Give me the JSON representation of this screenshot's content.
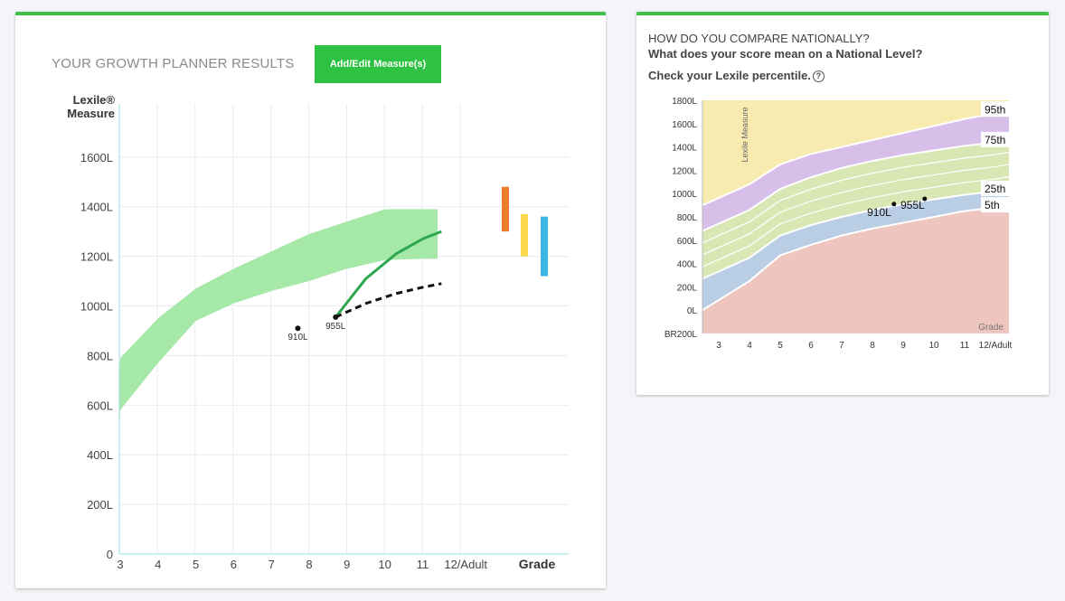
{
  "left_panel": {
    "title": "YOUR GROWTH PLANNER RESULTS",
    "add_button_label": "Add/Edit Measure(s)"
  },
  "right_panel": {
    "heading": "HOW DO YOU COMPARE NATIONALLY?",
    "subheading": "What does your score mean on a National Level?",
    "percentile_prompt": "Check your Lexile percentile.",
    "help_icon": "question-circle-icon"
  },
  "colors": {
    "accent": "#3ec14b",
    "band": "#a6e8a8",
    "growth_line": "#2ea84e",
    "bar_orange": "#ef7c2d",
    "bar_yellow": "#fbd94b",
    "bar_blue": "#3ab8e1"
  },
  "chart_data": [
    {
      "type": "line",
      "ylabel": "Lexile® Measure",
      "xlabel": "Grade",
      "categories": [
        "3",
        "4",
        "5",
        "6",
        "7",
        "8",
        "9",
        "10",
        "11",
        "12/Adult"
      ],
      "ylim": [
        0,
        1800
      ],
      "yticks": [
        {
          "value": 0,
          "label": "0"
        },
        {
          "value": 200,
          "label": "200L"
        },
        {
          "value": 400,
          "label": "400L"
        },
        {
          "value": 600,
          "label": "600L"
        },
        {
          "value": 800,
          "label": "800L"
        },
        {
          "value": 1000,
          "label": "1000L"
        },
        {
          "value": 1200,
          "label": "1200L"
        },
        {
          "value": 1400,
          "label": "1400L"
        },
        {
          "value": 1600,
          "label": "1600L"
        }
      ],
      "grid": true,
      "band": {
        "x": [
          2.6,
          3,
          4,
          5,
          6,
          7,
          8,
          9,
          10,
          11,
          11.4
        ],
        "low": [
          470,
          580,
          770,
          940,
          1010,
          1060,
          1100,
          1150,
          1185,
          1190,
          1190
        ],
        "high": [
          720,
          790,
          950,
          1070,
          1150,
          1220,
          1290,
          1340,
          1390,
          1390,
          1390
        ]
      },
      "points": [
        {
          "grade": 7.7,
          "value": 910,
          "label": "910L"
        },
        {
          "grade": 8.7,
          "value": 955,
          "label": "955L"
        }
      ],
      "growth_line": {
        "x": [
          8.7,
          9.5,
          10.3,
          11.0,
          11.5
        ],
        "y": [
          955,
          1110,
          1210,
          1270,
          1300
        ]
      },
      "projection": {
        "x": [
          8.7,
          9.5,
          10.3,
          11.0,
          11.5
        ],
        "y": [
          955,
          1010,
          1050,
          1075,
          1090
        ]
      },
      "range_bars": [
        {
          "color": "#ef7c2d",
          "low": 1300,
          "high": 1480
        },
        {
          "color": "#fbd94b",
          "low": 1200,
          "high": 1370
        },
        {
          "color": "#3ab8e1",
          "low": 1120,
          "high": 1360
        }
      ]
    },
    {
      "type": "area",
      "ylabel": "Lexile Measure",
      "xlabel": "Grade",
      "categories": [
        "3",
        "4",
        "5",
        "6",
        "7",
        "8",
        "9",
        "10",
        "11",
        "12/Adult"
      ],
      "ylim": [
        -200,
        1800
      ],
      "ytick_labels": [
        "BR200L",
        "0L",
        "200L",
        "400L",
        "600L",
        "800L",
        "1000L",
        "1200L",
        "1400L",
        "1600L",
        "1800L"
      ],
      "percentiles": [
        {
          "name": "5th",
          "values": [
            0,
            250,
            470,
            560,
            640,
            700,
            750,
            800,
            850,
            880,
            900
          ]
        },
        {
          "name": "25th",
          "values": [
            270,
            450,
            640,
            730,
            800,
            860,
            910,
            950,
            990,
            1020,
            1040
          ]
        },
        {
          "name": "75th",
          "values": [
            680,
            860,
            1040,
            1140,
            1220,
            1280,
            1330,
            1370,
            1410,
            1440,
            1460
          ]
        },
        {
          "name": "95th",
          "values": [
            900,
            1080,
            1250,
            1340,
            1400,
            1460,
            1520,
            1580,
            1640,
            1690,
            1720
          ]
        }
      ],
      "percentile_x": [
        3,
        4,
        5,
        6,
        7,
        8,
        9,
        10,
        11,
        12,
        12.5
      ],
      "points": [
        {
          "grade": 8.7,
          "value": 910,
          "label": "910L"
        },
        {
          "grade": 9.7,
          "value": 955,
          "label": "955L"
        }
      ],
      "corner_label": "Grade"
    }
  ]
}
